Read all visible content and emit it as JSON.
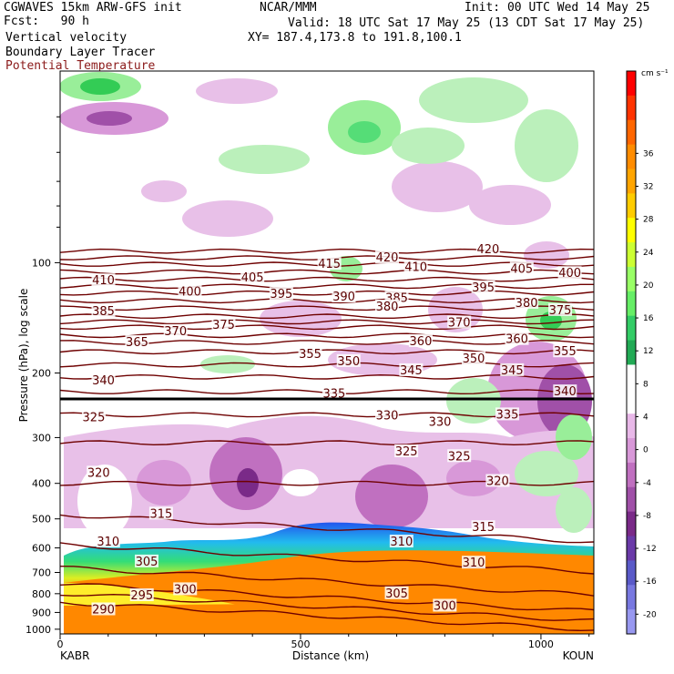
{
  "header": {
    "model": "CGWAVES 15km ARW-GFS init",
    "forecast": "Fcst:   90 h",
    "field1": "Vertical velocity",
    "field2": "Boundary Layer Tracer",
    "field3": "Potential Temperature",
    "center": "NCAR/MMM",
    "init": "Init: 00 UTC Wed 14 May 25",
    "valid": "Valid: 18 UTC Sat 17 May 25 (13 CDT Sat 17 May 25)",
    "xy": "XY= 187.4,173.8 to 191.8,100.1"
  },
  "chart_data": {
    "type": "heatmap",
    "title": "Vertical velocity / Boundary Layer Tracer / Potential Temperature",
    "xlabel": "Distance (km)",
    "ylabel": "Pressure (hPa), log scale",
    "x_ticks": [
      "0",
      "500",
      "1000"
    ],
    "x_range_km": [
      0,
      1110
    ],
    "y_ticks": [
      "100",
      "200",
      "300",
      "400",
      "500",
      "600",
      "700",
      "800",
      "900",
      "1000"
    ],
    "y_range_hPa": [
      1030,
      30
    ],
    "y_scale": "log",
    "left_endpoint": "KABR",
    "right_endpoint": "KOUN",
    "colorbar": {
      "units": "cm s⁻¹",
      "labels": [
        "36",
        "32",
        "28",
        "24",
        "20",
        "16",
        "12",
        "8",
        "4",
        "0",
        "-4",
        "-8",
        "-12",
        "-16",
        "-20"
      ],
      "colors": [
        "#ff0000",
        "#ff3300",
        "#ff6600",
        "#ff8c00",
        "#ffa500",
        "#ffcc00",
        "#ffff00",
        "#ccff33",
        "#99ff66",
        "#66ee66",
        "#33cc66",
        "#22aa55",
        "#ffffff",
        "#ffffff",
        "#e8b8e8",
        "#d898d8",
        "#c070c0",
        "#a050a8",
        "#7a2a88",
        "#6a3aa8",
        "#5a5ac8",
        "#7878e0",
        "#9898f0"
      ]
    },
    "theta_contours": [
      {
        "value": 290,
        "p": 920
      },
      {
        "value": 295,
        "p": 870
      },
      {
        "value": 300,
        "p": 820
      },
      {
        "value": 305,
        "p": 740
      },
      {
        "value": 310,
        "p": 640
      },
      {
        "value": 315,
        "p": 530
      },
      {
        "value": 320,
        "p": 400
      },
      {
        "value": 325,
        "p": 310
      },
      {
        "value": 330,
        "p": 260
      },
      {
        "value": 335,
        "p": 225
      },
      {
        "value": 340,
        "p": 205
      },
      {
        "value": 345,
        "p": 190
      },
      {
        "value": 350,
        "p": 175
      },
      {
        "value": 355,
        "p": 165
      },
      {
        "value": 360,
        "p": 158
      },
      {
        "value": 365,
        "p": 150
      },
      {
        "value": 370,
        "p": 145
      },
      {
        "value": 375,
        "p": 140
      },
      {
        "value": 380,
        "p": 133
      },
      {
        "value": 385,
        "p": 127
      },
      {
        "value": 390,
        "p": 121
      },
      {
        "value": 395,
        "p": 116
      },
      {
        "value": 400,
        "p": 111
      },
      {
        "value": 405,
        "p": 106
      },
      {
        "value": 410,
        "p": 101
      },
      {
        "value": 415,
        "p": 97
      },
      {
        "value": 420,
        "p": 93
      }
    ],
    "contour_labels": [
      {
        "text": "410",
        "x": 90,
        "p": 112
      },
      {
        "text": "400",
        "x": 270,
        "p": 120
      },
      {
        "text": "405",
        "x": 400,
        "p": 110
      },
      {
        "text": "415",
        "x": 560,
        "p": 101
      },
      {
        "text": "420",
        "x": 680,
        "p": 97
      },
      {
        "text": "410",
        "x": 740,
        "p": 103
      },
      {
        "text": "420",
        "x": 890,
        "p": 92
      },
      {
        "text": "405",
        "x": 960,
        "p": 104
      },
      {
        "text": "400",
        "x": 1060,
        "p": 107
      },
      {
        "text": "395",
        "x": 460,
        "p": 122
      },
      {
        "text": "390",
        "x": 590,
        "p": 124
      },
      {
        "text": "385",
        "x": 700,
        "p": 125
      },
      {
        "text": "395",
        "x": 880,
        "p": 117
      },
      {
        "text": "380",
        "x": 680,
        "p": 132
      },
      {
        "text": "380",
        "x": 970,
        "p": 129
      },
      {
        "text": "375",
        "x": 1040,
        "p": 135
      },
      {
        "text": "385",
        "x": 90,
        "p": 136
      },
      {
        "text": "370",
        "x": 240,
        "p": 154
      },
      {
        "text": "375",
        "x": 340,
        "p": 148
      },
      {
        "text": "370",
        "x": 830,
        "p": 146
      },
      {
        "text": "360",
        "x": 750,
        "p": 164
      },
      {
        "text": "360",
        "x": 950,
        "p": 162
      },
      {
        "text": "365",
        "x": 160,
        "p": 165
      },
      {
        "text": "355",
        "x": 520,
        "p": 178
      },
      {
        "text": "350",
        "x": 600,
        "p": 186
      },
      {
        "text": "350",
        "x": 860,
        "p": 183
      },
      {
        "text": "355",
        "x": 1050,
        "p": 175
      },
      {
        "text": "345",
        "x": 730,
        "p": 197
      },
      {
        "text": "345",
        "x": 940,
        "p": 197
      },
      {
        "text": "340",
        "x": 90,
        "p": 210
      },
      {
        "text": "335",
        "x": 570,
        "p": 228
      },
      {
        "text": "340",
        "x": 1050,
        "p": 225
      },
      {
        "text": "335",
        "x": 930,
        "p": 260
      },
      {
        "text": "325",
        "x": 70,
        "p": 265
      },
      {
        "text": "330",
        "x": 680,
        "p": 262
      },
      {
        "text": "330",
        "x": 790,
        "p": 272
      },
      {
        "text": "325",
        "x": 720,
        "p": 328
      },
      {
        "text": "325",
        "x": 830,
        "p": 338
      },
      {
        "text": "320",
        "x": 80,
        "p": 375
      },
      {
        "text": "320",
        "x": 910,
        "p": 395
      },
      {
        "text": "315",
        "x": 210,
        "p": 485
      },
      {
        "text": "315",
        "x": 880,
        "p": 528
      },
      {
        "text": "310",
        "x": 100,
        "p": 578
      },
      {
        "text": "310",
        "x": 710,
        "p": 578
      },
      {
        "text": "310",
        "x": 860,
        "p": 660
      },
      {
        "text": "305",
        "x": 180,
        "p": 655
      },
      {
        "text": "305",
        "x": 700,
        "p": 800
      },
      {
        "text": "300",
        "x": 260,
        "p": 780
      },
      {
        "text": "300",
        "x": 800,
        "p": 865
      },
      {
        "text": "295",
        "x": 170,
        "p": 810
      },
      {
        "text": "290",
        "x": 90,
        "p": 885
      }
    ],
    "grid": false,
    "legend": "colorbar right"
  }
}
